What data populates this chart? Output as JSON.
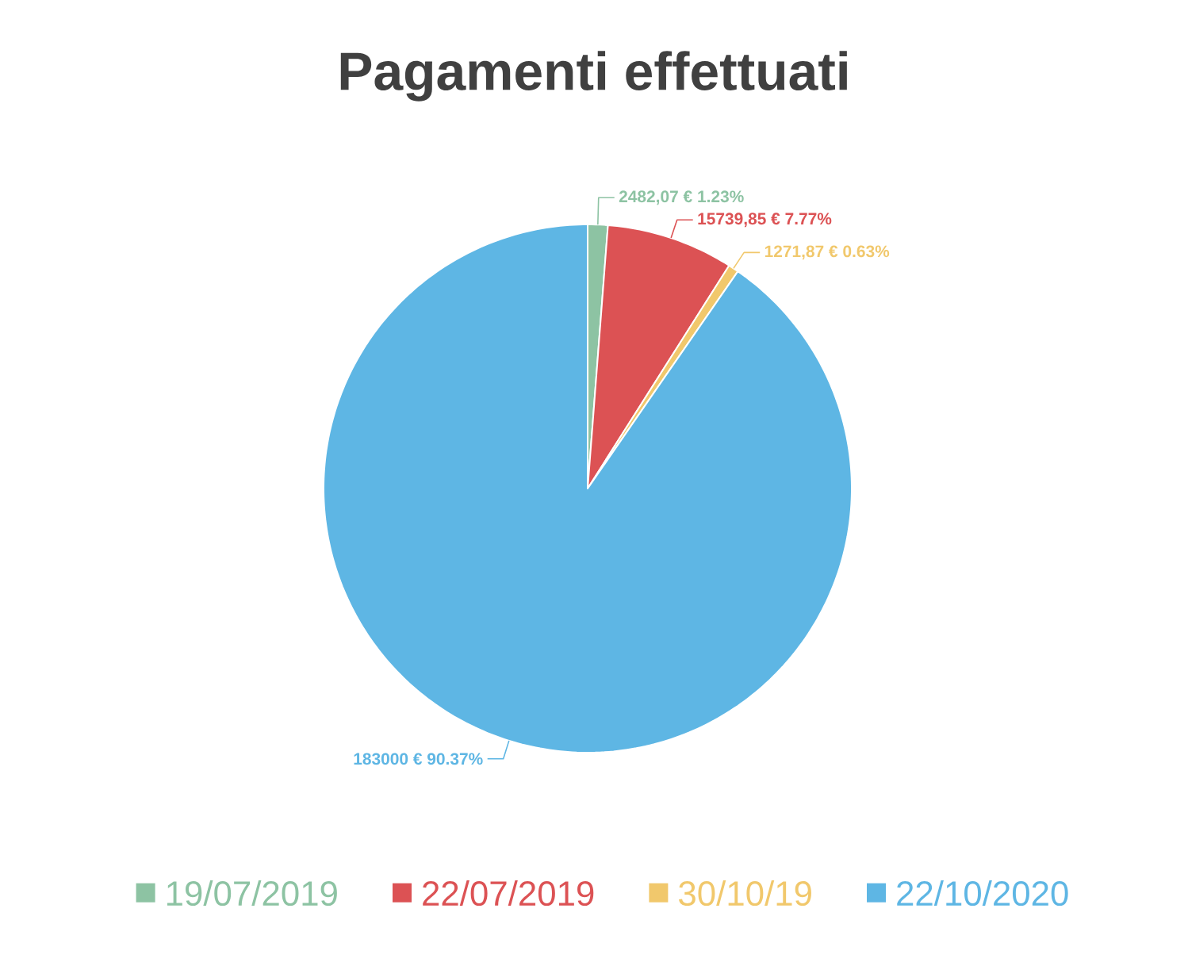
{
  "chart_data": {
    "type": "pie",
    "title": "Pagamenti effettuati",
    "categories": [
      "19/07/2019",
      "22/07/2019",
      "30/10/19",
      "22/10/2020"
    ],
    "values": [
      2482.07,
      15739.85,
      1271.87,
      183000
    ],
    "colors": [
      "#8dc3a3",
      "#dc5254",
      "#f1c86c",
      "#5eb6e4"
    ],
    "value_labels": [
      "2482,07 € 1.23%",
      "15739,85 € 7.77%",
      "1271,87 € 0.63%",
      "183000 € 90.37%"
    ],
    "legend": "bottom"
  }
}
